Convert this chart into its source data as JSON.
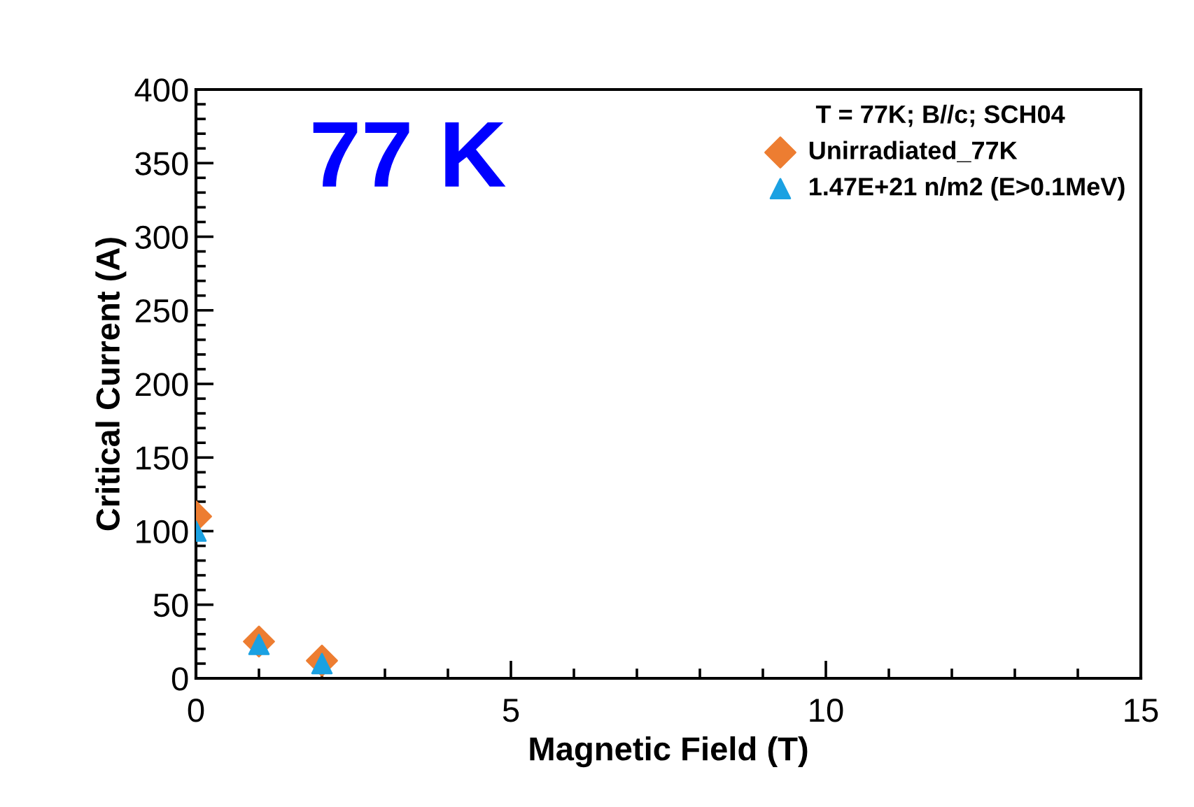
{
  "chart_data": {
    "type": "scatter",
    "xlabel": "Magnetic Field (T)",
    "ylabel": "Critical Current (A)",
    "legend_title": "T = 77K; B//c; SCH04",
    "annotations": [
      "77 K"
    ],
    "series": [
      {
        "name": "Unirradiated_77K",
        "color": "#ed7d31",
        "marker": "diamond",
        "x": [
          0,
          1,
          2
        ],
        "values": [
          110,
          25,
          12
        ]
      },
      {
        "name": "1.47E+21 n/m2 (E>0.1MeV)",
        "color": "#1ba1e2",
        "marker": "triangle",
        "x": [
          0,
          1,
          2
        ],
        "values": [
          100,
          23,
          10
        ]
      }
    ],
    "xlim": [
      0,
      15
    ],
    "xticks": [
      0,
      5,
      10,
      15
    ],
    "ylim": [
      0,
      400
    ],
    "yticks": [
      0,
      50,
      100,
      150,
      200,
      250,
      300,
      350,
      400
    ],
    "grid": false,
    "legend": "top right"
  }
}
